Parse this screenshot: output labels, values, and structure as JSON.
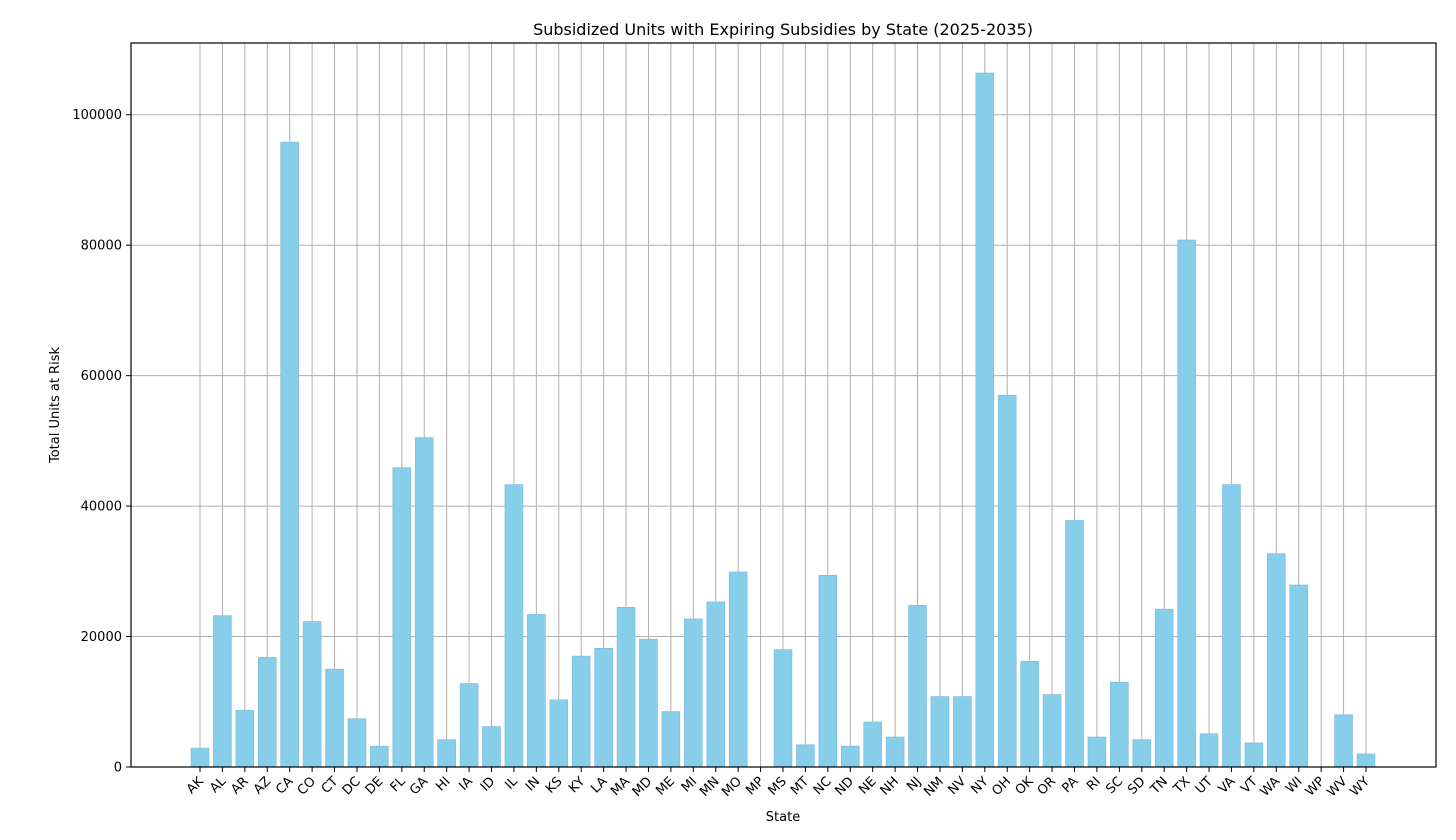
{
  "chart_data": {
    "type": "bar",
    "title": "Subsidized Units with Expiring Subsidies by State (2025-2035)",
    "xlabel": "State",
    "ylabel": "Total Units at Risk",
    "ylim": [
      0,
      111000
    ],
    "yticks": [
      0,
      20000,
      40000,
      60000,
      80000,
      100000
    ],
    "grid": true,
    "bar_color": "#87CEEB",
    "categories": [
      "AK",
      "AL",
      "AR",
      "AZ",
      "CA",
      "CO",
      "CT",
      "DC",
      "DE",
      "FL",
      "GA",
      "HI",
      "IA",
      "ID",
      "IL",
      "IN",
      "KS",
      "KY",
      "LA",
      "MA",
      "MD",
      "ME",
      "MI",
      "MN",
      "MO",
      "MP",
      "MS",
      "MT",
      "NC",
      "ND",
      "NE",
      "NH",
      "NJ",
      "NM",
      "NV",
      "NY",
      "OH",
      "OK",
      "OR",
      "PA",
      "RI",
      "SC",
      "SD",
      "TN",
      "TX",
      "UT",
      "VA",
      "VT",
      "WA",
      "WI",
      "WP",
      "WV",
      "WY"
    ],
    "values": [
      2900,
      23200,
      8700,
      16800,
      95800,
      22300,
      15000,
      7400,
      3200,
      45900,
      50500,
      4200,
      12800,
      6200,
      43300,
      23400,
      10300,
      17000,
      18200,
      24500,
      19600,
      8500,
      22700,
      25300,
      29900,
      0,
      18000,
      3400,
      29400,
      3200,
      6900,
      4600,
      24800,
      10800,
      10800,
      106400,
      57000,
      16200,
      11100,
      37800,
      4600,
      13000,
      4200,
      24200,
      80800,
      5100,
      43300,
      3700,
      32700,
      27900,
      0,
      8000,
      2000
    ]
  }
}
